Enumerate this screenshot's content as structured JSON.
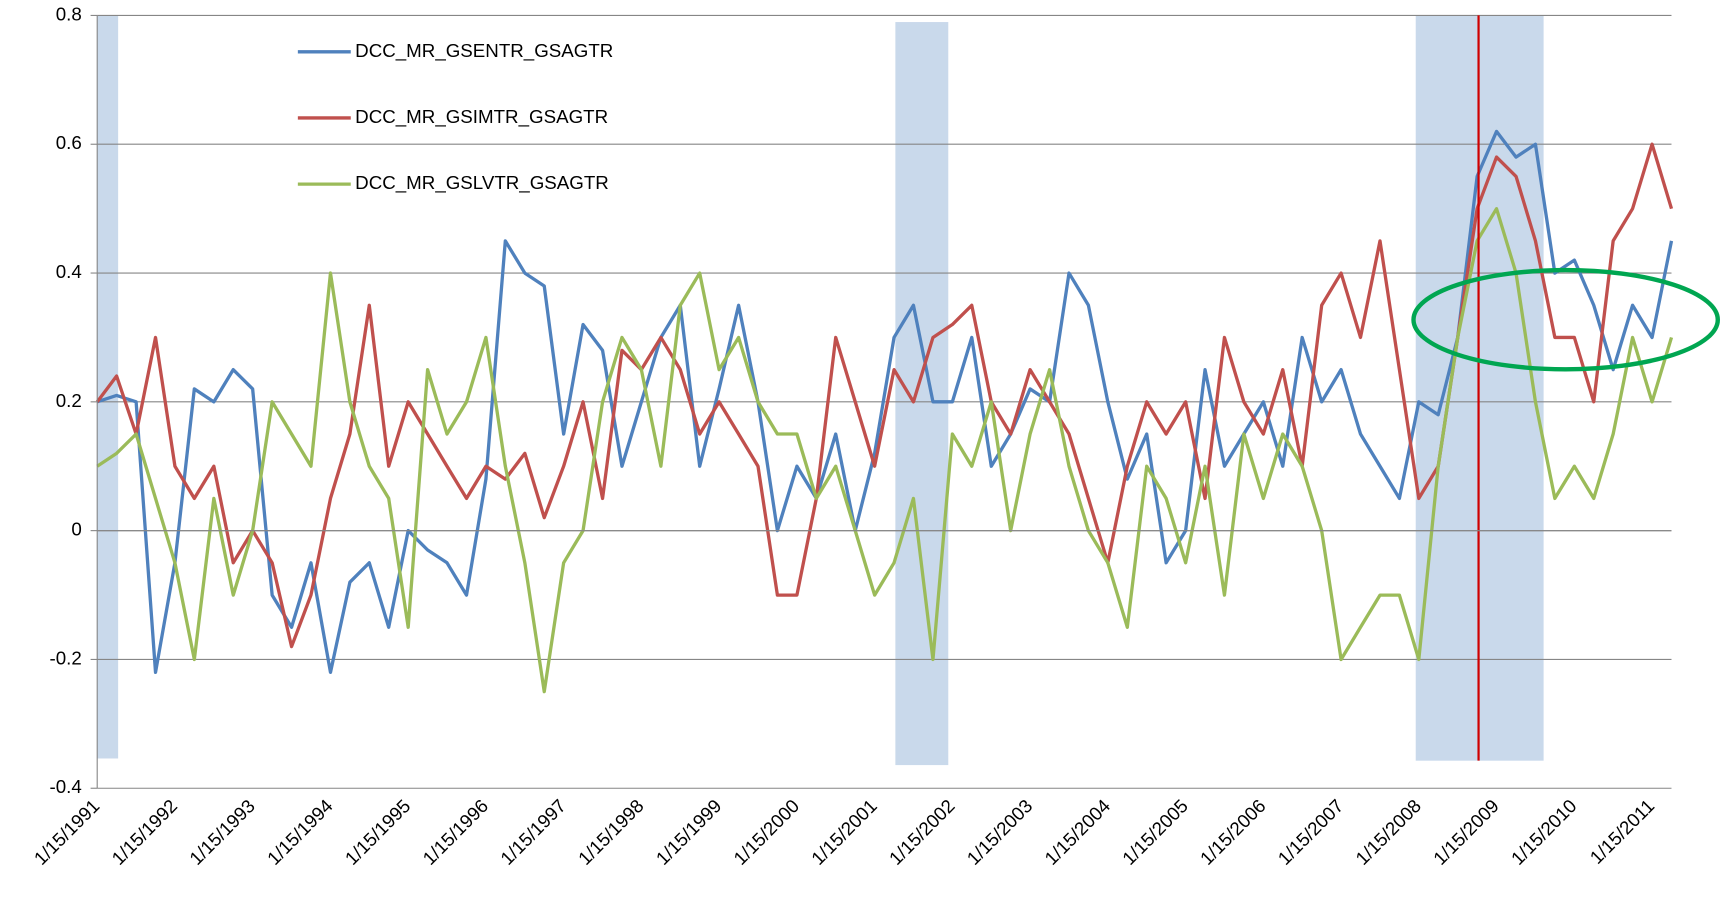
{
  "chart_data": {
    "type": "line",
    "categories": [
      "1/15/1991",
      null,
      null,
      null,
      "1/15/1992",
      null,
      null,
      null,
      "1/15/1993",
      null,
      null,
      null,
      "1/15/1994",
      null,
      null,
      null,
      "1/15/1995",
      null,
      null,
      null,
      "1/15/1996",
      null,
      null,
      null,
      "1/15/1997",
      null,
      null,
      null,
      "1/15/1998",
      null,
      null,
      null,
      "1/15/1999",
      null,
      null,
      null,
      "1/15/2000",
      null,
      null,
      null,
      "1/15/2001",
      null,
      null,
      null,
      "1/15/2002",
      null,
      null,
      null,
      "1/15/2003",
      null,
      null,
      null,
      "1/15/2004",
      null,
      null,
      null,
      "1/15/2005",
      null,
      null,
      null,
      "1/15/2006",
      null,
      null,
      null,
      "1/15/2007",
      null,
      null,
      null,
      "1/15/2008",
      null,
      null,
      null,
      "1/15/2009",
      null,
      null,
      null,
      "1/15/2010",
      null,
      null,
      null,
      "1/15/2011",
      null
    ],
    "series": [
      {
        "name": "DCC_MR_GSENTR_GSAGTR",
        "color": "#4f81bd",
        "values": [
          0.2,
          0.21,
          0.2,
          -0.22,
          -0.05,
          0.22,
          0.2,
          0.25,
          0.22,
          -0.1,
          -0.15,
          -0.05,
          -0.22,
          -0.08,
          -0.05,
          -0.15,
          0.0,
          -0.03,
          -0.05,
          -0.1,
          0.08,
          0.45,
          0.4,
          0.38,
          0.15,
          0.32,
          0.28,
          0.1,
          0.2,
          0.3,
          0.35,
          0.1,
          0.22,
          0.35,
          0.2,
          0.0,
          0.1,
          0.05,
          0.15,
          0.0,
          0.12,
          0.3,
          0.35,
          0.2,
          0.2,
          0.3,
          0.1,
          0.15,
          0.22,
          0.2,
          0.4,
          0.35,
          0.2,
          0.08,
          0.15,
          -0.05,
          0.0,
          0.25,
          0.1,
          0.15,
          0.2,
          0.1,
          0.3,
          0.2,
          0.25,
          0.15,
          0.1,
          0.05,
          0.2,
          0.18,
          0.3,
          0.55,
          0.62,
          0.58,
          0.6,
          0.4,
          0.42,
          0.35,
          0.25,
          0.35,
          0.3,
          0.45
        ]
      },
      {
        "name": "DCC_MR_GSIMTR_GSAGTR",
        "color": "#c0504d",
        "values": [
          0.2,
          0.24,
          0.15,
          0.3,
          0.1,
          0.05,
          0.1,
          -0.05,
          0.0,
          -0.05,
          -0.18,
          -0.1,
          0.05,
          0.15,
          0.35,
          0.1,
          0.2,
          0.15,
          0.1,
          0.05,
          0.1,
          0.08,
          0.12,
          0.02,
          0.1,
          0.2,
          0.05,
          0.28,
          0.25,
          0.3,
          0.25,
          0.15,
          0.2,
          0.15,
          0.1,
          -0.1,
          -0.1,
          0.05,
          0.3,
          0.2,
          0.1,
          0.25,
          0.2,
          0.3,
          0.32,
          0.35,
          0.2,
          0.15,
          0.25,
          0.2,
          0.15,
          0.05,
          -0.05,
          0.1,
          0.2,
          0.15,
          0.2,
          0.05,
          0.3,
          0.2,
          0.15,
          0.25,
          0.1,
          0.35,
          0.4,
          0.3,
          0.45,
          0.25,
          0.05,
          0.1,
          0.3,
          0.5,
          0.58,
          0.55,
          0.45,
          0.3,
          0.3,
          0.2,
          0.45,
          0.5,
          0.6,
          0.5
        ]
      },
      {
        "name": "DCC_MR_GSLVTR_GSAGTR",
        "color": "#9bbb59",
        "values": [
          0.1,
          0.12,
          0.15,
          0.05,
          -0.05,
          -0.2,
          0.05,
          -0.1,
          0.0,
          0.2,
          0.15,
          0.1,
          0.4,
          0.2,
          0.1,
          0.05,
          -0.15,
          0.25,
          0.15,
          0.2,
          0.3,
          0.1,
          -0.05,
          -0.25,
          -0.05,
          0.0,
          0.2,
          0.3,
          0.25,
          0.1,
          0.35,
          0.4,
          0.25,
          0.3,
          0.2,
          0.15,
          0.15,
          0.05,
          0.1,
          0.0,
          -0.1,
          -0.05,
          0.05,
          -0.2,
          0.15,
          0.1,
          0.2,
          0.0,
          0.15,
          0.25,
          0.1,
          0.0,
          -0.05,
          -0.15,
          0.1,
          0.05,
          -0.05,
          0.1,
          -0.1,
          0.15,
          0.05,
          0.15,
          0.1,
          0.0,
          -0.2,
          -0.15,
          -0.1,
          -0.1,
          -0.2,
          0.1,
          0.3,
          0.45,
          0.5,
          0.4,
          0.2,
          0.05,
          0.1,
          0.05,
          0.15,
          0.3,
          0.2,
          0.3
        ]
      }
    ],
    "ylim": [
      -0.4,
      0.8
    ],
    "yticks": [
      -0.4,
      -0.2,
      0,
      0.2,
      0.4,
      0.6,
      0.8
    ],
    "grid": true,
    "legend": "upper left"
  }
}
